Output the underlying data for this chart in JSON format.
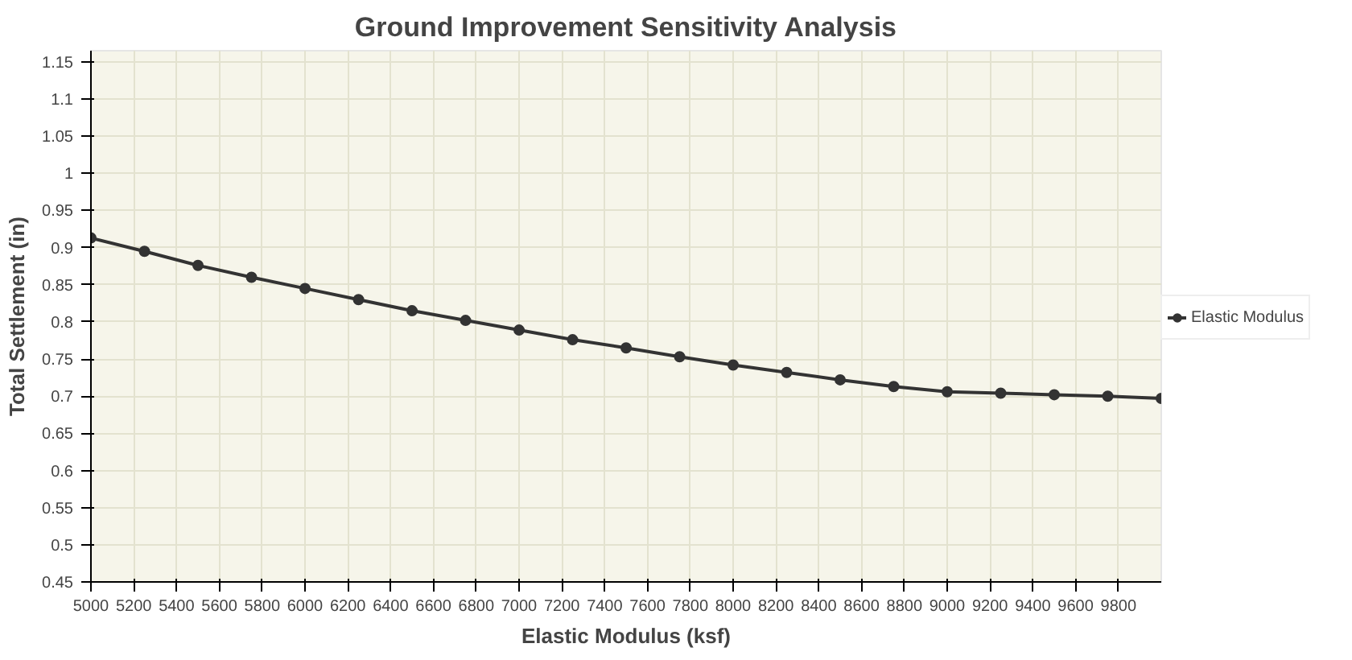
{
  "chart_data": {
    "type": "line",
    "title": "Ground Improvement Sensitivity Analysis",
    "xlabel": "Elastic Modulus (ksf)",
    "ylabel": "Total Settlement (in)",
    "x": [
      5000,
      5250,
      5500,
      5750,
      6000,
      6250,
      6500,
      6750,
      7000,
      7250,
      7500,
      7750,
      8000,
      8250,
      8500,
      8750,
      9000,
      9250,
      9500,
      9750,
      10000
    ],
    "series": [
      {
        "name": "Elastic Modulus",
        "color": "#333333",
        "values": [
          0.913,
          0.895,
          0.876,
          0.86,
          0.845,
          0.83,
          0.815,
          0.802,
          0.789,
          0.776,
          0.765,
          0.753,
          0.742,
          0.732,
          0.722,
          0.713,
          0.706,
          0.704,
          0.702,
          0.7,
          0.697
        ]
      }
    ],
    "xlim": [
      5000,
      10000
    ],
    "ylim": [
      0.45,
      1.165
    ],
    "xticks": [
      5000,
      5200,
      5400,
      5600,
      5800,
      6000,
      6200,
      6400,
      6600,
      6800,
      7000,
      7200,
      7400,
      7600,
      7800,
      8000,
      8200,
      8400,
      8600,
      8800,
      9000,
      9200,
      9400,
      9600,
      9800
    ],
    "yticks": [
      0.45,
      0.5,
      0.55,
      0.6,
      0.65,
      0.7,
      0.75,
      0.8,
      0.85,
      0.9,
      0.95,
      1,
      1.05,
      1.1,
      1.15
    ],
    "grid": true,
    "legend": "right",
    "marker": "circle",
    "line_style": "solid"
  }
}
